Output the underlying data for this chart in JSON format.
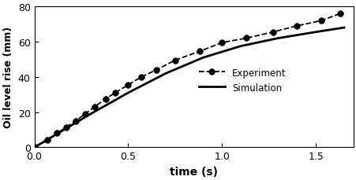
{
  "experiment_x": [
    0.0,
    0.07,
    0.12,
    0.17,
    0.22,
    0.27,
    0.32,
    0.38,
    0.43,
    0.5,
    0.57,
    0.65,
    0.75,
    0.88,
    1.0,
    1.13,
    1.27,
    1.4,
    1.53,
    1.63
  ],
  "experiment_y": [
    0.0,
    4.0,
    8.0,
    11.5,
    15.0,
    19.0,
    23.0,
    27.5,
    31.0,
    35.5,
    40.0,
    44.0,
    49.5,
    54.5,
    59.5,
    62.0,
    65.5,
    69.0,
    72.0,
    76.0
  ],
  "simulation_x": [
    0.0,
    0.15,
    0.3,
    0.5,
    0.7,
    0.9,
    1.1,
    1.3,
    1.5,
    1.65
  ],
  "simulation_y": [
    0.0,
    9.5,
    19.0,
    31.0,
    42.0,
    51.0,
    57.5,
    62.0,
    65.5,
    68.0
  ],
  "xlabel": "time (s)",
  "ylabel": "Oil level rise (mm)",
  "xlim": [
    0,
    1.7
  ],
  "ylim": [
    0,
    80
  ],
  "xticks": [
    0,
    0.5,
    1,
    1.5
  ],
  "yticks": [
    0,
    20,
    40,
    60,
    80
  ],
  "legend_experiment": "Experiment",
  "legend_simulation": "Simulation",
  "bg_color": "#ffffff",
  "line_color": "#000000",
  "marker_color": "#000000",
  "figsize": [
    4.52,
    2.3
  ],
  "dpi": 100
}
